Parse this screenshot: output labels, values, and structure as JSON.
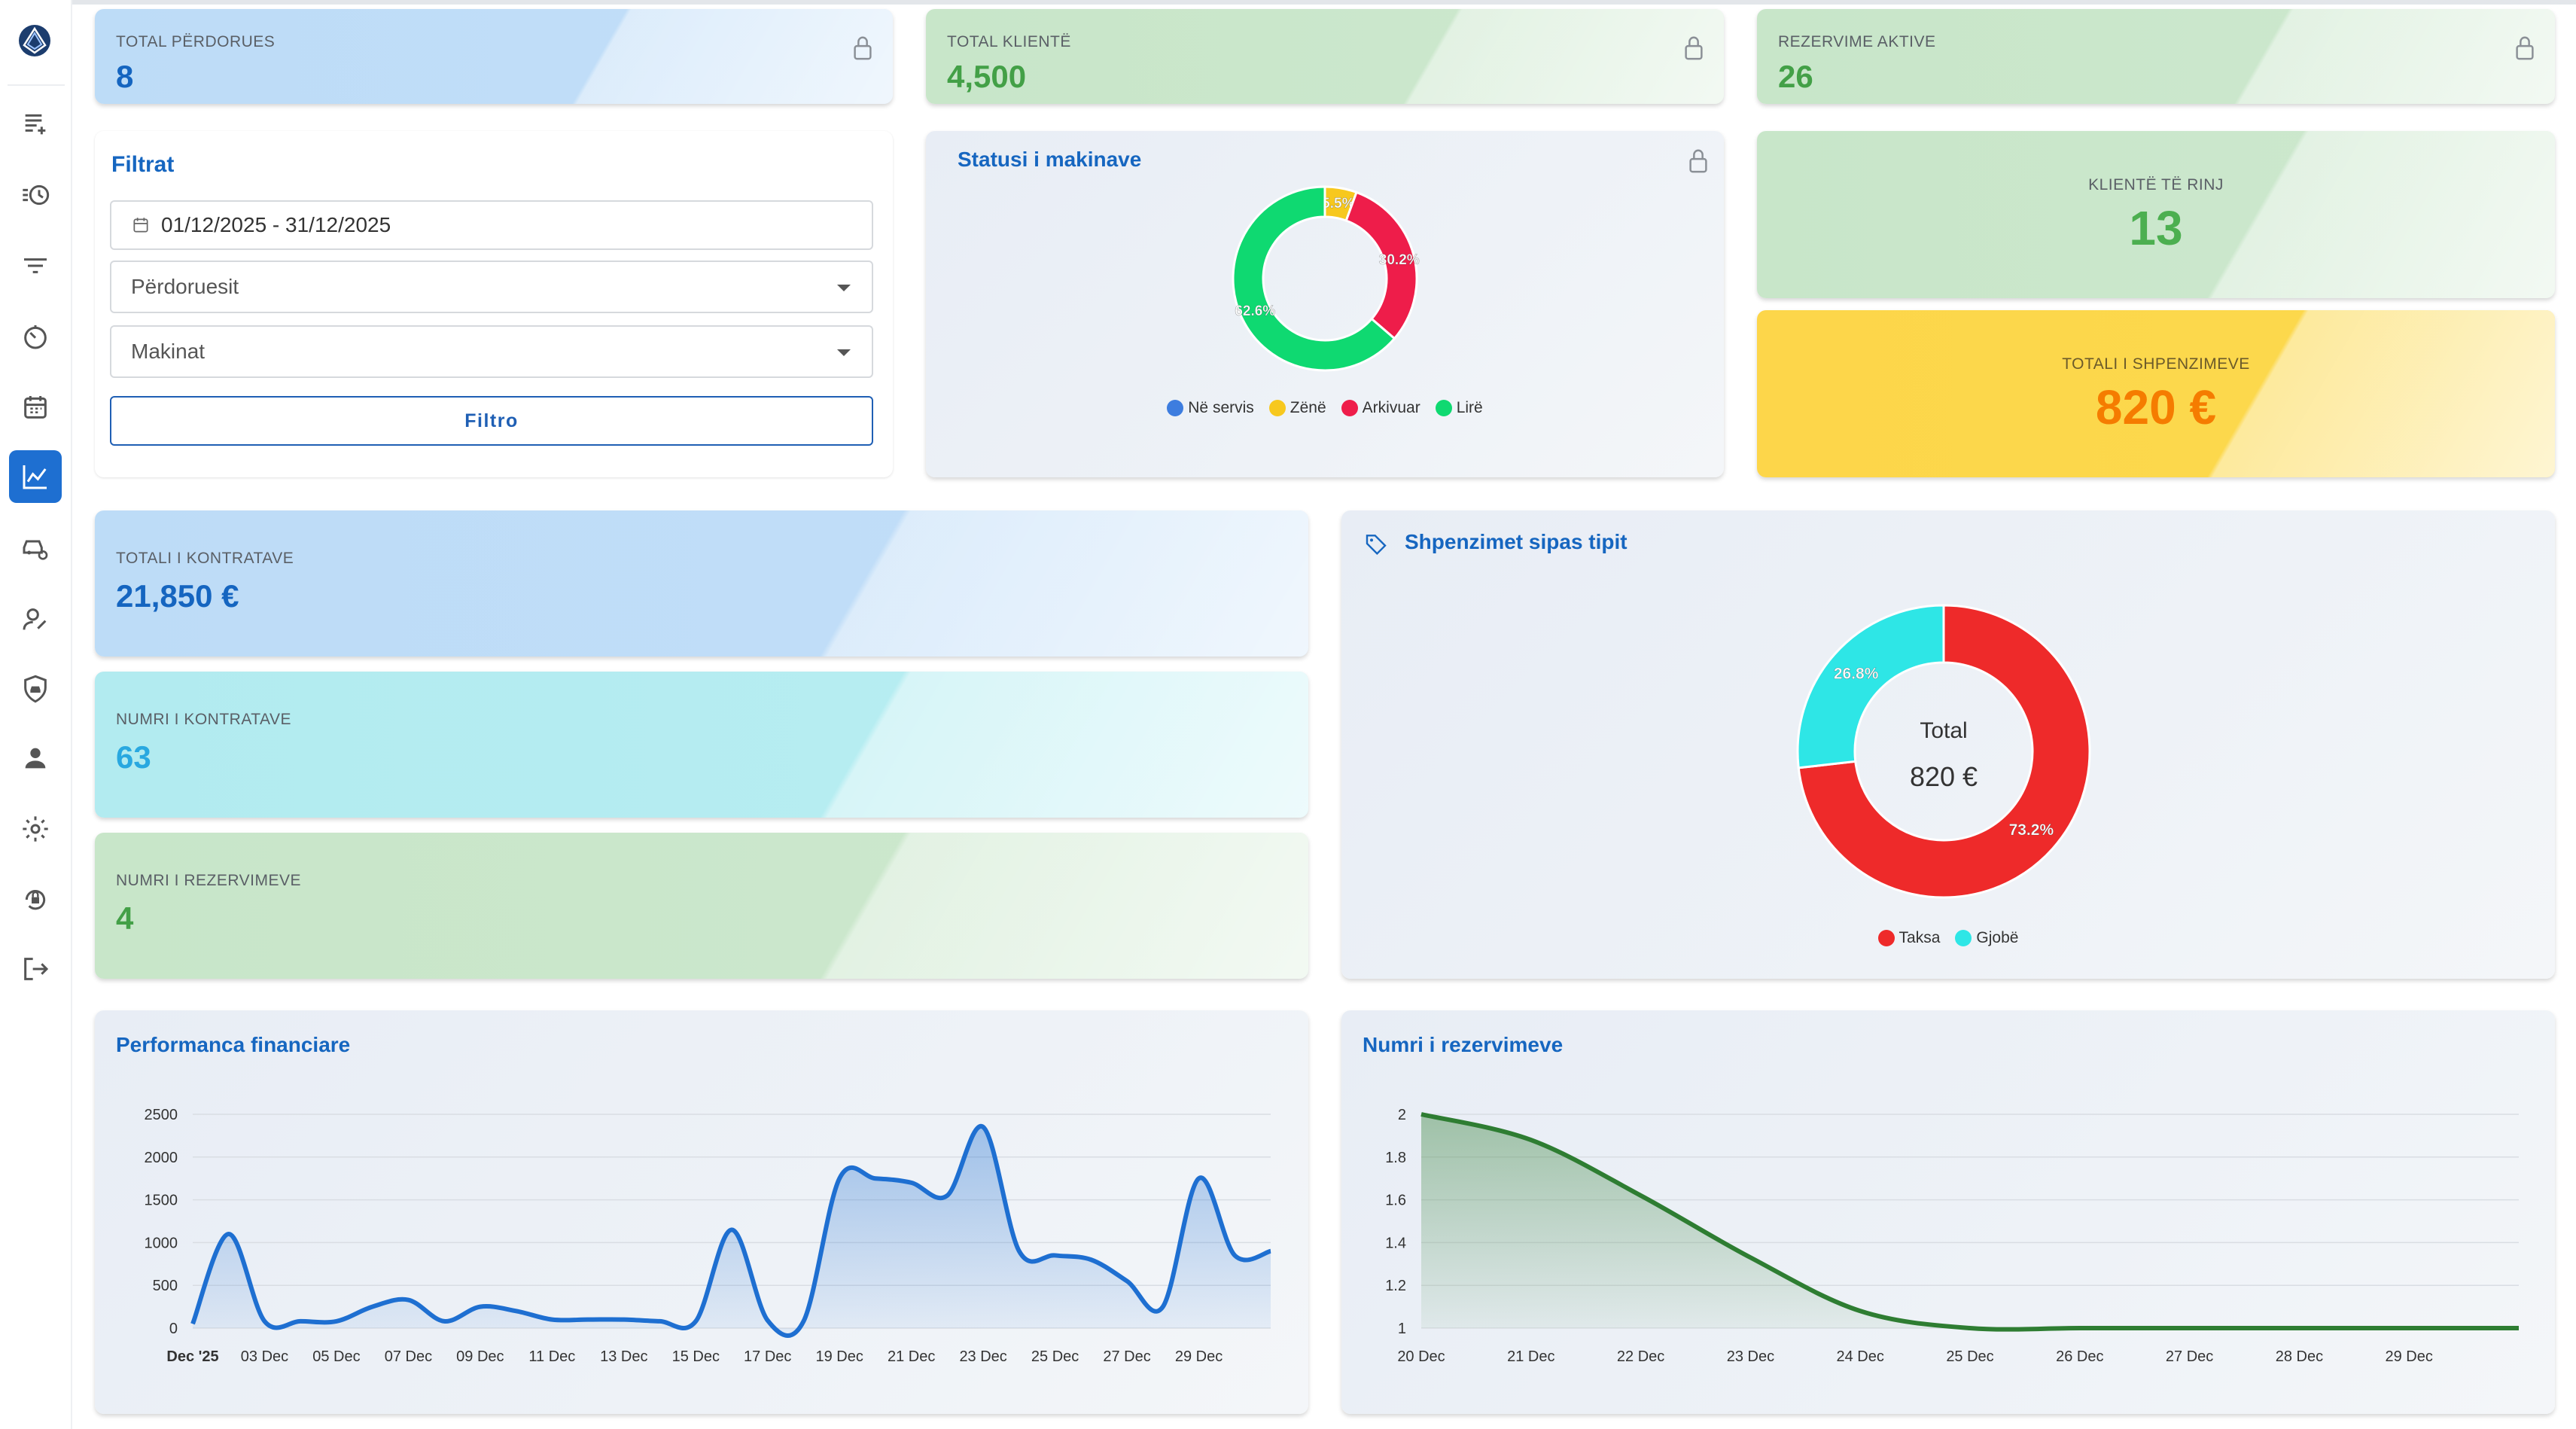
{
  "sidebar": {
    "items": [
      {
        "icon": "note-add-icon"
      },
      {
        "icon": "history-icon"
      },
      {
        "icon": "filter-icon"
      },
      {
        "icon": "timer-icon"
      },
      {
        "icon": "calendar-icon"
      },
      {
        "icon": "chart-line-icon",
        "active": true
      },
      {
        "icon": "car-settings-icon"
      },
      {
        "icon": "user-edit-icon"
      },
      {
        "icon": "shield-car-icon"
      },
      {
        "icon": "person-icon"
      },
      {
        "icon": "gear-icon"
      },
      {
        "icon": "lock-reset-icon"
      },
      {
        "icon": "logout-icon"
      }
    ]
  },
  "stats": {
    "total_users": {
      "label": "TOTAL PËRDORUES",
      "value": "8"
    },
    "total_clients": {
      "label": "TOTAL KLIENTË",
      "value": "4,500"
    },
    "active_reservations": {
      "label": "REZERVIME AKTIVE",
      "value": "26"
    },
    "new_clients": {
      "label": "KLIENTË TË RINJ",
      "value": "13"
    },
    "total_expenses": {
      "label": "TOTALI I SHPENZIMEVE",
      "value": "820 €"
    },
    "total_contracts": {
      "label": "TOTALI I KONTRATAVE",
      "value": "21,850 €"
    },
    "contract_count": {
      "label": "NUMRI I KONTRATAVE",
      "value": "63"
    },
    "reservation_count": {
      "label": "NUMRI I REZERVIMEVE",
      "value": "4"
    }
  },
  "filters": {
    "title": "Filtrat",
    "date_range": "01/12/2025 - 31/12/2025",
    "users_placeholder": "Përdoruesit",
    "cars_placeholder": "Makinat",
    "submit_label": "Filtro"
  },
  "colors": {
    "accent": "#1666c0",
    "blue_card": "#bddcf7",
    "green_card": "#c8e6c9",
    "cyan_card": "#b2ebf0",
    "yellow_card": "#fdd64a",
    "green_value": "#4caf50",
    "orange_value": "#f57c00",
    "line_blue": "#1e6fd1",
    "line_green": "#2e7d32"
  },
  "chart_data": [
    {
      "type": "pie",
      "title": "Statusi i makinave",
      "donut": true,
      "legend_position": "bottom",
      "slices": [
        {
          "name": "Në servis",
          "value": 0,
          "label": "",
          "color": "#3d7ddf"
        },
        {
          "name": "Zënë",
          "value": 5.5,
          "label": "5.5%",
          "color": "#f7c81e"
        },
        {
          "name": "Arkivuar",
          "value": 30.2,
          "label": "30.2%",
          "color": "#ee1d4a"
        },
        {
          "name": "Lirë",
          "value": 62.6,
          "label": "62.6%",
          "color": "#0fd971"
        }
      ]
    },
    {
      "type": "pie",
      "title": "Shpenzimet sipas tipit",
      "donut": true,
      "center_label": "Total",
      "center_value": "820 €",
      "legend_position": "bottom",
      "slices": [
        {
          "name": "Taksa",
          "value": 73.2,
          "label": "73.2%",
          "color": "#ee2a2a"
        },
        {
          "name": "Gjobë",
          "value": 26.8,
          "label": "26.8%",
          "color": "#2ee6e6"
        }
      ]
    },
    {
      "type": "area",
      "title": "Performanca financiare",
      "ylim": [
        0,
        2500
      ],
      "yticks": [
        0,
        500,
        1000,
        1500,
        2000,
        2500
      ],
      "grid": true,
      "xtick_labels": [
        "Dec '25",
        "03 Dec",
        "05 Dec",
        "07 Dec",
        "09 Dec",
        "11 Dec",
        "13 Dec",
        "15 Dec",
        "17 Dec",
        "19 Dec",
        "21 Dec",
        "23 Dec",
        "25 Dec",
        "27 Dec",
        "29 Dec"
      ],
      "x": [
        "01 Dec",
        "02 Dec",
        "03 Dec",
        "04 Dec",
        "05 Dec",
        "06 Dec",
        "07 Dec",
        "08 Dec",
        "09 Dec",
        "10 Dec",
        "11 Dec",
        "12 Dec",
        "13 Dec",
        "14 Dec",
        "15 Dec",
        "16 Dec",
        "17 Dec",
        "18 Dec",
        "19 Dec",
        "20 Dec",
        "21 Dec",
        "22 Dec",
        "23 Dec",
        "24 Dec",
        "25 Dec",
        "26 Dec",
        "27 Dec",
        "28 Dec",
        "29 Dec",
        "30 Dec",
        "31 Dec"
      ],
      "series": [
        {
          "values": [
            50,
            1100,
            80,
            80,
            80,
            250,
            330,
            80,
            250,
            200,
            100,
            100,
            100,
            80,
            80,
            1150,
            90,
            80,
            1750,
            1750,
            1700,
            1550,
            2350,
            900,
            850,
            800,
            550,
            250,
            1750,
            850,
            900
          ]
        }
      ]
    },
    {
      "type": "area",
      "title": "Numri i rezervimeve",
      "ylim": [
        1,
        2
      ],
      "yticks": [
        1,
        1.2,
        1.4,
        1.6,
        1.8,
        2
      ],
      "grid": true,
      "x": [
        "20 Dec",
        "21 Dec",
        "22 Dec",
        "23 Dec",
        "24 Dec",
        "25 Dec",
        "26 Dec",
        "27 Dec",
        "28 Dec",
        "29 Dec",
        "30 Dec"
      ],
      "xtick_labels": [
        "20 Dec",
        "21 Dec",
        "22 Dec",
        "23 Dec",
        "24 Dec",
        "25 Dec",
        "26 Dec",
        "27 Dec",
        "28 Dec",
        "29 Dec"
      ],
      "series": [
        {
          "values": [
            2,
            1.88,
            1.62,
            1.33,
            1.08,
            1,
            1,
            1,
            1,
            1,
            1
          ]
        }
      ]
    }
  ]
}
